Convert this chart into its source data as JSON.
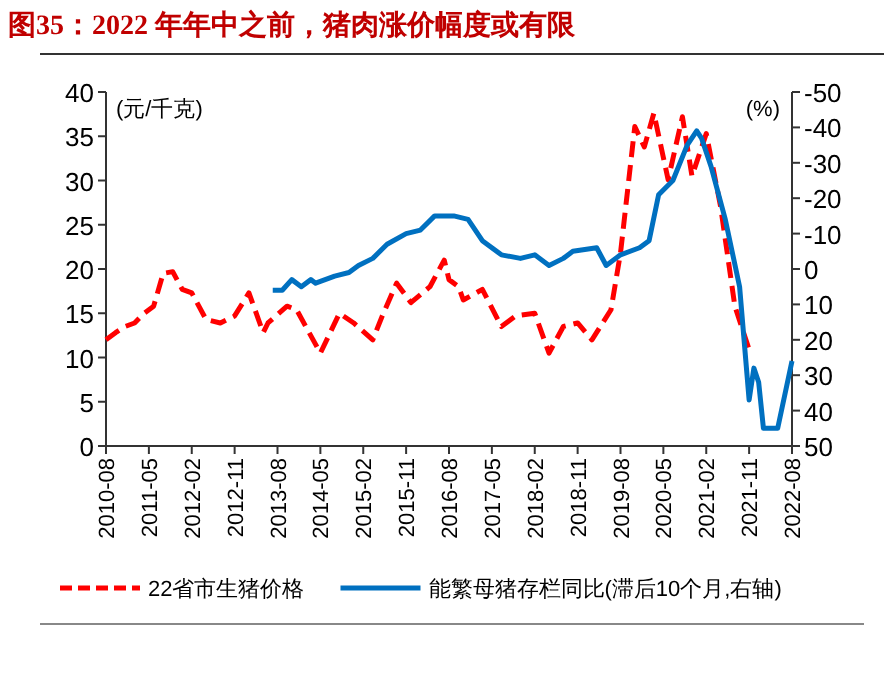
{
  "chart_data": {
    "type": "line",
    "title": "图35：2022 年年中之前，猪肉涨价幅度或有限",
    "ylabel": "(元/千克)",
    "y2label": "(%)",
    "xlim": [
      "2010-08",
      "2022-08"
    ],
    "xticks": [
      "2010-08",
      "2011-05",
      "2012-02",
      "2012-11",
      "2013-08",
      "2014-05",
      "2015-02",
      "2015-11",
      "2016-08",
      "2017-05",
      "2018-02",
      "2018-11",
      "2019-08",
      "2020-05",
      "2021-02",
      "2021-11",
      "2022-08"
    ],
    "ylim": [
      0,
      40
    ],
    "yticks": [
      0,
      5,
      10,
      15,
      20,
      25,
      30,
      35,
      40
    ],
    "y2lim": [
      50,
      -50
    ],
    "y2ticks": [
      50,
      40,
      30,
      20,
      10,
      0,
      -10,
      -20,
      -30,
      -40,
      -50
    ],
    "legend": "bottom",
    "series": [
      {
        "name": "22省市生猪价格",
        "color": "#ff0000",
        "line_style": "dashed",
        "x": [
          "2010-08",
          "2010-10",
          "2010-12",
          "2011-02",
          "2011-04",
          "2011-06",
          "2011-08",
          "2011-10",
          "2011-12",
          "2012-02",
          "2012-05",
          "2012-08",
          "2012-11",
          "2013-02",
          "2013-05",
          "2013-06",
          "2013-10",
          "2013-12",
          "2014-05",
          "2014-09",
          "2014-12",
          "2015-04",
          "2015-06",
          "2015-09",
          "2015-12",
          "2016-04",
          "2016-07",
          "2016-08",
          "2016-10",
          "2016-11",
          "2017-03",
          "2017-07",
          "2017-10",
          "2018-02",
          "2018-05",
          "2018-08",
          "2018-11",
          "2019-02",
          "2019-06",
          "2019-08",
          "2019-11",
          "2020-01",
          "2020-03",
          "2020-06",
          "2020-09",
          "2020-11",
          "2021-02",
          "2021-05",
          "2021-08",
          "2021-11"
        ],
        "values": [
          12.0,
          12.8,
          13.5,
          13.9,
          15.0,
          15.8,
          19.5,
          19.7,
          17.7,
          17.3,
          14.3,
          13.9,
          14.7,
          17.3,
          12.8,
          13.9,
          15.8,
          15.4,
          10.5,
          15.0,
          13.9,
          12.0,
          14.7,
          18.4,
          16.2,
          18.0,
          21.0,
          18.8,
          18.0,
          16.5,
          17.7,
          13.5,
          14.7,
          15.0,
          10.5,
          13.5,
          13.9,
          12.0,
          15.4,
          21.8,
          36.1,
          33.8,
          37.6,
          30.1,
          37.2,
          30.5,
          35.3,
          27.1,
          15.8,
          10.9
        ]
      },
      {
        "name": "能繁母猪存栏同比(滞后10个月,右轴)",
        "color": "#0070c0",
        "line_style": "solid",
        "axis": "y2",
        "x": [
          "2013-07",
          "2013-09",
          "2013-11",
          "2014-01",
          "2014-03",
          "2014-04",
          "2014-08",
          "2014-11",
          "2015-01",
          "2015-04",
          "2015-07",
          "2015-11",
          "2016-02",
          "2016-05",
          "2016-09",
          "2016-12",
          "2017-03",
          "2017-07",
          "2017-11",
          "2018-02",
          "2018-05",
          "2018-08",
          "2018-10",
          "2019-03",
          "2019-05",
          "2019-08",
          "2019-12",
          "2020-02",
          "2020-04",
          "2020-07",
          "2020-10",
          "2020-12",
          "2021-01",
          "2021-03",
          "2021-06",
          "2021-09",
          "2021-11",
          "2021-12",
          "2022-01",
          "2022-02",
          "2022-05",
          "2022-08"
        ],
        "values": [
          6,
          6,
          3,
          5,
          3,
          4,
          2,
          1,
          -1,
          -3,
          -7,
          -10,
          -11,
          -15,
          -15,
          -14,
          -8,
          -4,
          -3,
          -4,
          -1,
          -3,
          -5,
          -6,
          -1,
          -4,
          -6,
          -8,
          -21,
          -25,
          -35,
          -39,
          -37,
          -29,
          -14,
          5,
          37,
          28,
          32,
          45,
          45,
          26
        ]
      }
    ]
  }
}
